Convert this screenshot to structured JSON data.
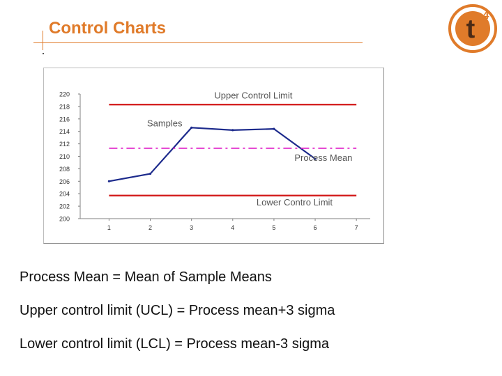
{
  "slide": {
    "title": "Control Charts",
    "logo_text": "t",
    "logo_superscript": "4",
    "notes": [
      "Process Mean = Mean of Sample Means",
      "Upper control limit (UCL) = Process mean+3 sigma",
      "Lower control limit (LCL) = Process mean-3 sigma"
    ]
  },
  "colors": {
    "accent": "#e07b2a",
    "limit_line": "#d42020",
    "sample_line": "#1c2a8c",
    "mean_line": "#e020c8",
    "logo_brown": "#4a2a16"
  },
  "chart_data": {
    "type": "line",
    "title": "",
    "xlabel": "",
    "ylabel": "",
    "x": [
      1,
      2,
      3,
      4,
      5,
      6,
      7
    ],
    "xlim": [
      0.3,
      7.2
    ],
    "ylim": [
      200,
      220
    ],
    "yticks": [
      200,
      202,
      204,
      206,
      208,
      210,
      212,
      214,
      216,
      218,
      220
    ],
    "grid": false,
    "series": [
      {
        "name": "Samples",
        "x": [
          1,
          2,
          3,
          4,
          5,
          6
        ],
        "values": [
          206.0,
          207.2,
          214.6,
          214.2,
          214.4,
          209.6
        ]
      },
      {
        "name": "Upper Control Limit",
        "x": [
          1,
          7
        ],
        "values": [
          218.3,
          218.3
        ]
      },
      {
        "name": "Process Mean",
        "x": [
          1,
          7
        ],
        "values": [
          211.3,
          211.3
        ]
      },
      {
        "name": "Lower Control Limit",
        "x": [
          1,
          7
        ],
        "values": [
          203.7,
          203.7
        ]
      }
    ],
    "annotations": [
      {
        "text": "Upper Control Limit",
        "x": 4.5,
        "y": 219.3
      },
      {
        "text": "Samples",
        "x": 2.35,
        "y": 214.8
      },
      {
        "text": "Process Mean",
        "x": 6.2,
        "y": 209.3
      },
      {
        "text": "Lower Contro  Limit",
        "x": 5.5,
        "y": 202.1
      }
    ]
  }
}
